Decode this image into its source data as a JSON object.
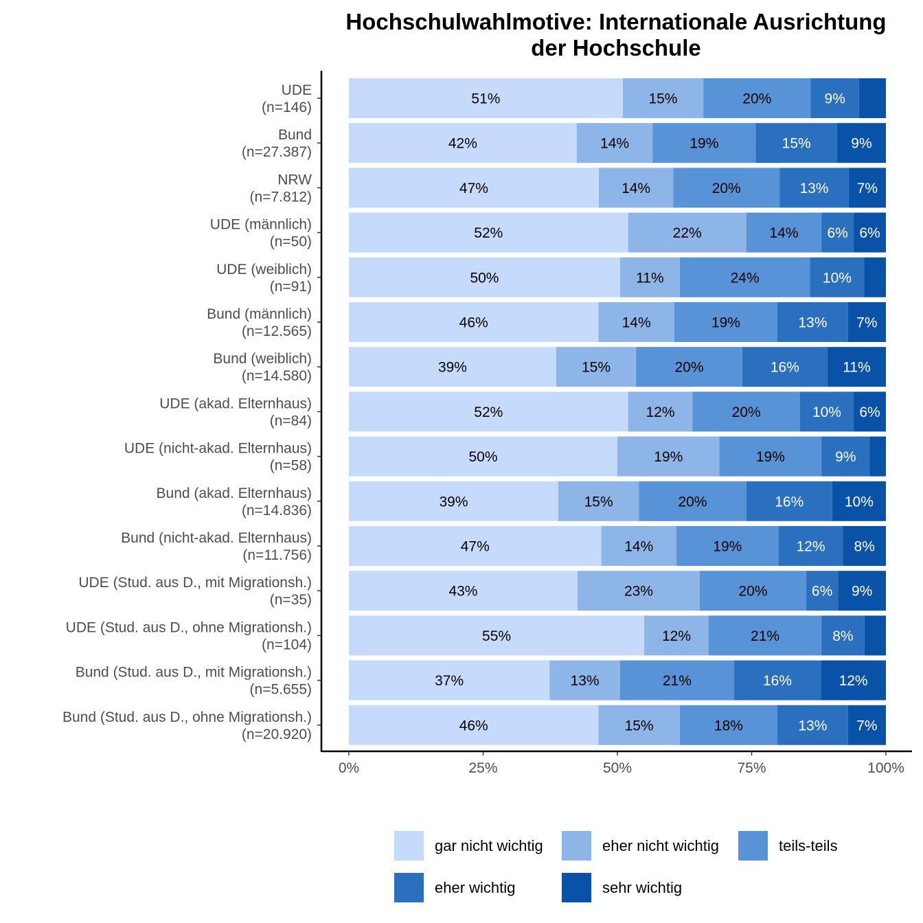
{
  "chart_data": {
    "type": "bar",
    "orientation": "horizontal",
    "stacked": "percent",
    "title": "Hochschulwahlmotive: Internationale Ausrichtung der Hochschule",
    "title_lines": [
      "Hochschulwahlmotive: Internationale Ausrichtung",
      "der Hochschule"
    ],
    "xlabel": "",
    "ylabel": "",
    "xlim": [
      0,
      100
    ],
    "x_ticks": [
      "0%",
      "25%",
      "50%",
      "75%",
      "100%"
    ],
    "grid": false,
    "legend_position": "bottom",
    "categories": [
      [
        "UDE",
        "(n=146)"
      ],
      [
        "Bund",
        "(n=27.387)"
      ],
      [
        "NRW",
        "(n=7.812)"
      ],
      [
        "UDE (männlich)",
        "(n=50)"
      ],
      [
        "UDE (weiblich)",
        "(n=91)"
      ],
      [
        "Bund (männlich)",
        "(n=12.565)"
      ],
      [
        "Bund (weiblich)",
        "(n=14.580)"
      ],
      [
        "UDE (akad. Elternhaus)",
        "(n=84)"
      ],
      [
        "UDE (nicht-akad. Elternhaus)",
        "(n=58)"
      ],
      [
        "Bund (akad. Elternhaus)",
        "(n=14.836)"
      ],
      [
        "Bund (nicht-akad. Elternhaus)",
        "(n=11.756)"
      ],
      [
        "UDE (Stud. aus D., mit Migrationsh.)",
        "(n=35)"
      ],
      [
        "UDE (Stud. aus D., ohne Migrationsh.)",
        "(n=104)"
      ],
      [
        "Bund (Stud. aus D., mit Migrationsh.)",
        "(n=5.655)"
      ],
      [
        "Bund (Stud. aus D., ohne Migrationsh.)",
        "(n=20.920)"
      ]
    ],
    "series": [
      {
        "name": "gar nicht wichtig",
        "color": "#c6dbfc",
        "values": [
          51,
          42,
          47,
          52,
          50,
          46,
          39,
          52,
          50,
          39,
          47,
          43,
          55,
          37,
          46
        ],
        "labels": [
          "51%",
          "42%",
          "47%",
          "52%",
          "50%",
          "46%",
          "39%",
          "52%",
          "50%",
          "39%",
          "47%",
          "43%",
          "55%",
          "37%",
          "46%"
        ]
      },
      {
        "name": "eher nicht wichtig",
        "color": "#8db5e8",
        "values": [
          15,
          14,
          14,
          22,
          11,
          14,
          15,
          12,
          19,
          15,
          14,
          23,
          12,
          13,
          15
        ],
        "labels": [
          "15%",
          "14%",
          "14%",
          "22%",
          "11%",
          "14%",
          "15%",
          "12%",
          "19%",
          "15%",
          "14%",
          "23%",
          "12%",
          "13%",
          "15%"
        ]
      },
      {
        "name": "teils-teils",
        "color": "#5793d6",
        "values": [
          20,
          19,
          20,
          14,
          24,
          19,
          20,
          20,
          19,
          20,
          19,
          20,
          21,
          21,
          18
        ],
        "labels": [
          "20%",
          "19%",
          "20%",
          "14%",
          "24%",
          "19%",
          "20%",
          "20%",
          "19%",
          "20%",
          "19%",
          "20%",
          "21%",
          "21%",
          "18%"
        ]
      },
      {
        "name": "eher wichtig",
        "color": "#2b6fbf",
        "values": [
          9,
          15,
          13,
          6,
          10,
          13,
          16,
          10,
          9,
          16,
          12,
          6,
          8,
          16,
          13
        ],
        "labels": [
          "9%",
          "15%",
          "13%",
          "6%",
          "10%",
          "13%",
          "16%",
          "10%",
          "9%",
          "16%",
          "12%",
          "6%",
          "8%",
          "16%",
          "13%"
        ]
      },
      {
        "name": "sehr wichtig",
        "color": "#0a52a8",
        "values": [
          5,
          9,
          7,
          6,
          4,
          7,
          11,
          6,
          3,
          10,
          8,
          9,
          4,
          12,
          7
        ],
        "labels": [
          "",
          "9%",
          "7%",
          "6%",
          "",
          "7%",
          "11%",
          "6%",
          "",
          "10%",
          "8%",
          "9%",
          "",
          "12%",
          "7%"
        ]
      }
    ]
  }
}
